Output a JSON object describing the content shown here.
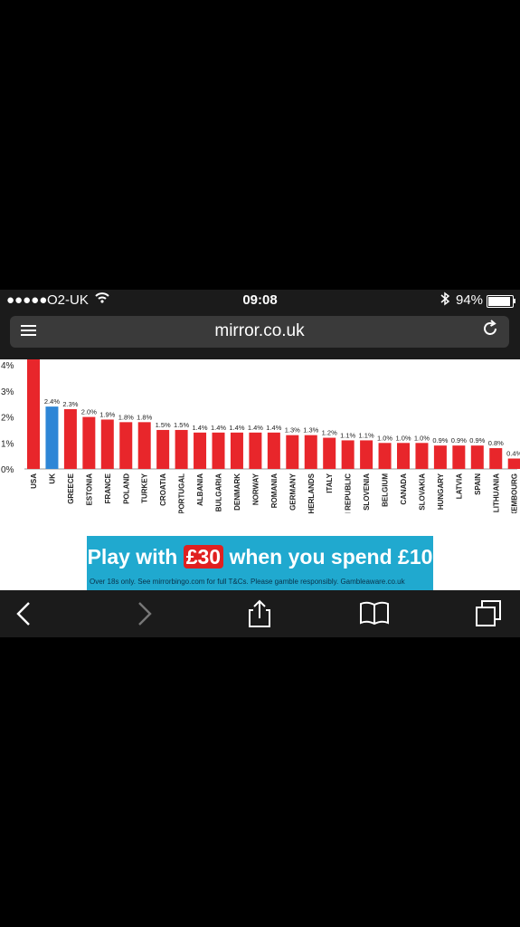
{
  "status_bar": {
    "signal": "●●●●●",
    "carrier": "O2-UK",
    "time": "09:08",
    "battery": "94%"
  },
  "browser": {
    "url": "mirror.co.uk"
  },
  "chart_data": {
    "type": "bar",
    "categories": [
      "USA",
      "UK",
      "GREECE",
      "ESTONIA",
      "FRANCE",
      "POLAND",
      "TURKEY",
      "CROATIA",
      "PORTUGAL",
      "ALBANIA",
      "BULGARIA",
      "DENMARK",
      "NORWAY",
      "ROMANIA",
      "GERMANY",
      "NETHERLANDS",
      "ITALY",
      "CZECH REPUBLIC",
      "SLOVENIA",
      "BELGIUM",
      "CANADA",
      "SLOVAKIA",
      "HUNGARY",
      "LATVIA",
      "SPAIN",
      "LITHUANIA",
      "LUXEMBOURG"
    ],
    "values": [
      4.4,
      2.4,
      2.3,
      2.0,
      1.9,
      1.8,
      1.8,
      1.5,
      1.5,
      1.4,
      1.4,
      1.4,
      1.4,
      1.4,
      1.3,
      1.3,
      1.2,
      1.1,
      1.1,
      1.0,
      1.0,
      1.0,
      0.9,
      0.9,
      0.9,
      0.8,
      0.4
    ],
    "value_labels": [
      "",
      "2.4%",
      "2.3%",
      "2.0%",
      "1.9%",
      "1.8%",
      "1.8%",
      "1.5%",
      "1.5%",
      "1.4%",
      "1.4%",
      "1.4%",
      "1.4%",
      "1.4%",
      "1.3%",
      "1.3%",
      "1.2%",
      "1.1%",
      "1.1%",
      "1.0%",
      "1.0%",
      "1.0%",
      "0.9%",
      "0.9%",
      "0.9%",
      "0.8%",
      "0.4%"
    ],
    "y_ticks": [
      "0%",
      "1%",
      "2%",
      "3%",
      "4%"
    ],
    "ylim": [
      0,
      4.4
    ],
    "highlight_category": "UK",
    "colors": {
      "bar": "#e8262b",
      "highlight": "#2e86d6"
    }
  },
  "ad": {
    "headline_prefix": "Play with ",
    "amount": "£30",
    "headline_suffix": " when you spend £10",
    "small_print": "Over 18s only. See mirrorbingo.com for full T&Cs. Please gamble responsibly. Gambleaware.co.uk"
  },
  "toolbar_icons": [
    "back-icon",
    "forward-icon",
    "share-icon",
    "bookmarks-icon",
    "tabs-icon"
  ]
}
